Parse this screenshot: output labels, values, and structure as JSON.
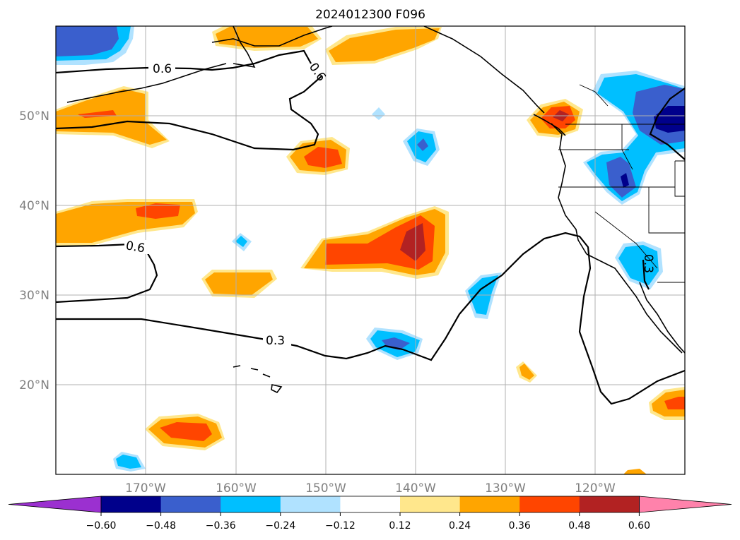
{
  "title": "2024012300 F096",
  "map": {
    "projection": "lat-lon",
    "lon_range": [
      -180,
      -110
    ],
    "lat_range": [
      10,
      60
    ],
    "gridlines": true,
    "lon_ticks": [
      "170°W",
      "160°W",
      "150°W",
      "140°W",
      "130°W",
      "120°W"
    ],
    "lat_ticks": [
      "50°N",
      "40°N",
      "30°N",
      "20°N"
    ]
  },
  "colorbar": {
    "orientation": "horizontal",
    "extend": "both",
    "tick_labels": [
      "−0.60",
      "−0.48",
      "−0.36",
      "−0.24",
      "−0.12",
      "0.12",
      "0.24",
      "0.36",
      "0.48",
      "0.60"
    ],
    "bins": [
      {
        "range": "< -0.60",
        "color": "#9b30d0"
      },
      {
        "range": "-0.60 to -0.48",
        "color": "#00008b"
      },
      {
        "range": "-0.48 to -0.36",
        "color": "#3a5fcd"
      },
      {
        "range": "-0.36 to -0.24",
        "color": "#00bfff"
      },
      {
        "range": "-0.24 to -0.12",
        "color": "#b0e2ff"
      },
      {
        "range": "-0.12 to 0.12",
        "color": "#ffffff"
      },
      {
        "range": "0.12 to 0.24",
        "color": "#ffe78c"
      },
      {
        "range": "0.24 to 0.36",
        "color": "#ffa500"
      },
      {
        "range": "0.36 to 0.48",
        "color": "#ff4500"
      },
      {
        "range": "0.48 to 0.60",
        "color": "#b22222"
      },
      {
        "range": "> 0.60",
        "color": "#ff82ab"
      }
    ]
  },
  "contour_labels": [
    "0.6",
    "0.6",
    "0.6",
    "0.3",
    "0.3"
  ]
}
